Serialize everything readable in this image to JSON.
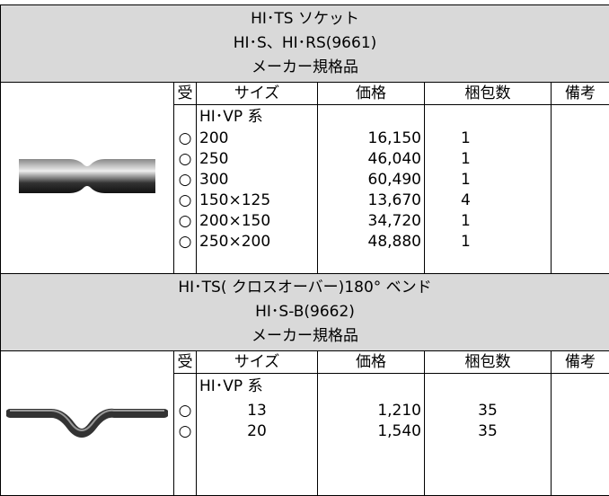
{
  "sections": [
    {
      "title_lines": [
        "HI･TS ソケット",
        "HI･S、HI･RS(9661)",
        "メーカー規格品"
      ],
      "headers": [
        "受",
        "サイズ",
        "価格",
        "梱包数",
        "備考"
      ],
      "group": "HI･VP 系",
      "rows": [
        {
          "mark": "○",
          "size": "200",
          "price": "16,150",
          "qty": "1"
        },
        {
          "mark": "○",
          "size": "250",
          "price": "46,040",
          "qty": "1"
        },
        {
          "mark": "○",
          "size": "300",
          "price": "60,490",
          "qty": "1"
        },
        {
          "mark": "○",
          "size": "150×125",
          "price": "13,670",
          "qty": "4"
        },
        {
          "mark": "○",
          "size": "200×150",
          "price": "34,720",
          "qty": "1"
        },
        {
          "mark": "○",
          "size": "250×200",
          "price": "48,880",
          "qty": "1"
        }
      ]
    },
    {
      "title_lines": [
        "HI･TS( クロスオーバー)180° ベンド",
        "HI･S-B(9662)",
        "メーカー規格品"
      ],
      "headers": [
        "受",
        "サイズ",
        "価格",
        "梱包数",
        "備考"
      ],
      "group": "HI･VP 系",
      "rows": [
        {
          "mark": "○",
          "size": "13",
          "price": "1,210",
          "qty": "35"
        },
        {
          "mark": "○",
          "size": "20",
          "price": "1,540",
          "qty": "35"
        }
      ]
    }
  ]
}
